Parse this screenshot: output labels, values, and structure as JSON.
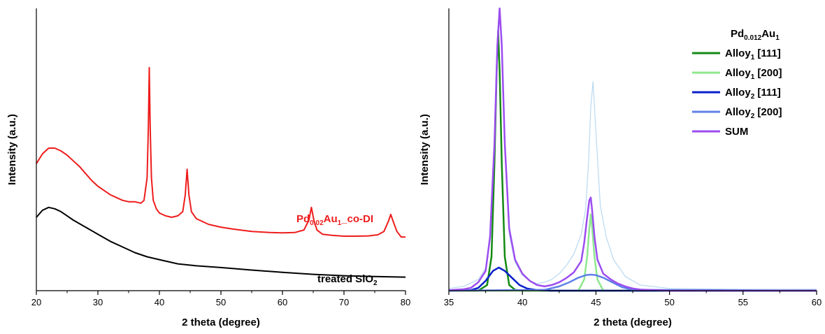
{
  "colors": {
    "red": "#ee1c1c",
    "black": "#000000",
    "alloy1_111": "#138a13",
    "alloy1_200": "#8ee88e",
    "alloy2_111": "#0a1fc8",
    "alloy2_200": "#5f80e8",
    "sum": "#9b4df0",
    "raw": "#b8d8f0"
  },
  "chart_data": [
    {
      "type": "line",
      "xlabel": "2 theta (degree)",
      "ylabel": "Intensity (a.u.)",
      "xlim": [
        20,
        80
      ],
      "xticks": [
        20,
        30,
        40,
        50,
        60,
        70,
        80
      ],
      "ylim": [
        0,
        100
      ],
      "y_ticks_shown": false,
      "annotations": [
        {
          "series": "red",
          "parts": [
            {
              "t": "Pd",
              "sub": false
            },
            {
              "t": "0.02",
              "sub": true
            },
            {
              "t": "Au",
              "sub": false
            },
            {
              "t": "1",
              "sub": true
            },
            {
              "t": "_co-DI",
              "sub": false
            }
          ]
        },
        {
          "series": "black",
          "parts": [
            {
              "t": "treated SiO",
              "sub": false
            },
            {
              "t": "2",
              "sub": true
            }
          ]
        }
      ],
      "series": [
        {
          "color_key": "red",
          "x": [
            20,
            21,
            22,
            23,
            24,
            25,
            26,
            27,
            28,
            29,
            30,
            31,
            32,
            33,
            34,
            35,
            36,
            37,
            37.5,
            38,
            38.2,
            38.35,
            38.5,
            38.7,
            39,
            39.5,
            40,
            41,
            42,
            43,
            43.8,
            44.2,
            44.5,
            44.8,
            45.2,
            46,
            47,
            48,
            50,
            52,
            55,
            58,
            60,
            62,
            63.5,
            64.3,
            64.7,
            65.1,
            65.6,
            66.5,
            68,
            70,
            72,
            74,
            75.5,
            76.5,
            77.2,
            77.6,
            78.0,
            78.6,
            79.3,
            80
          ],
          "y": [
            45,
            48.5,
            50.5,
            50.5,
            49.5,
            48,
            46,
            44,
            41.5,
            39,
            37,
            35.5,
            34,
            33,
            32,
            31.5,
            31.5,
            31,
            32,
            40,
            58,
            79,
            58,
            40,
            32,
            29,
            27.5,
            26.5,
            26,
            26.5,
            28,
            34,
            43,
            34,
            28,
            25.5,
            24.5,
            23.5,
            22.5,
            21.8,
            21,
            20.6,
            20.5,
            20.6,
            21.5,
            25,
            29.5,
            25,
            21.5,
            20,
            19.6,
            19.3,
            19.3,
            19.4,
            19.8,
            21,
            24.5,
            27,
            24.5,
            21,
            19,
            19
          ]
        },
        {
          "color_key": "black",
          "x": [
            20,
            21,
            22,
            23,
            24,
            25,
            26,
            28,
            30,
            32,
            34,
            36,
            38,
            40,
            43,
            46,
            50,
            55,
            60,
            65,
            70,
            75,
            80
          ],
          "y": [
            26,
            28.5,
            29.5,
            29,
            28,
            26.5,
            25,
            22.5,
            20,
            17.5,
            15.5,
            13.5,
            12,
            11,
            9.5,
            8.8,
            8.2,
            7.3,
            6.5,
            5.8,
            5.3,
            5,
            4.8
          ]
        }
      ]
    },
    {
      "type": "line",
      "xlabel": "2 theta (degree)",
      "ylabel": "Intensity (a.u.)",
      "xlim": [
        35,
        60
      ],
      "xticks": [
        35,
        40,
        45,
        50,
        55,
        60
      ],
      "ylim": [
        0,
        100
      ],
      "y_ticks_shown": false,
      "legend": {
        "position": "top-right",
        "title_parts": [
          {
            "t": "Pd",
            "sub": false
          },
          {
            "t": "0.012",
            "sub": true
          },
          {
            "t": "Au",
            "sub": false
          },
          {
            "t": "1",
            "sub": true
          }
        ],
        "entries": [
          {
            "color_key": "alloy1_111",
            "parts": [
              {
                "t": "Alloy",
                "sub": false
              },
              {
                "t": "1",
                "sub": true
              },
              {
                "t": " [111]",
                "sub": false
              }
            ]
          },
          {
            "color_key": "alloy1_200",
            "parts": [
              {
                "t": "Alloy",
                "sub": false
              },
              {
                "t": "1",
                "sub": true
              },
              {
                "t": " [200]",
                "sub": false
              }
            ]
          },
          {
            "color_key": "alloy2_111",
            "parts": [
              {
                "t": "Alloy",
                "sub": false
              },
              {
                "t": "2",
                "sub": true
              },
              {
                "t": " [111]",
                "sub": false
              }
            ]
          },
          {
            "color_key": "alloy2_200",
            "parts": [
              {
                "t": "Alloy",
                "sub": false
              },
              {
                "t": "2",
                "sub": true
              },
              {
                "t": " [200]",
                "sub": false
              }
            ]
          },
          {
            "color_key": "sum",
            "parts": [
              {
                "t": "SUM",
                "sub": false
              }
            ]
          }
        ]
      },
      "series": [
        {
          "color_key": "raw",
          "x": [
            35,
            36,
            37,
            37.5,
            37.8,
            38.1,
            38.3,
            38.45,
            38.6,
            38.8,
            39.1,
            39.5,
            40,
            40.5,
            41,
            41.5,
            42,
            42.5,
            43,
            43.5,
            44,
            44.3,
            44.5,
            44.65,
            44.8,
            45,
            45.3,
            45.7,
            46.2,
            47,
            48,
            50,
            55,
            60
          ],
          "y": [
            0.8,
            1.5,
            4,
            8,
            18,
            50,
            86,
            98,
            86,
            50,
            20,
            10,
            5.5,
            3.5,
            2.5,
            3,
            4,
            6,
            9,
            13,
            20,
            29,
            46,
            65,
            74,
            56,
            30,
            19,
            11,
            5,
            2,
            0.8,
            0.5,
            0.5
          ]
        },
        {
          "color_key": "alloy1_111",
          "x": [
            35,
            37,
            37.6,
            37.9,
            38.1,
            38.25,
            38.35,
            38.45,
            38.6,
            38.8,
            39.1,
            39.5,
            40,
            60
          ],
          "y": [
            0,
            0,
            2,
            12,
            45,
            78,
            92,
            78,
            45,
            12,
            2,
            0.3,
            0,
            0
          ]
        },
        {
          "color_key": "alloy1_200",
          "x": [
            35,
            43.8,
            44.2,
            44.4,
            44.55,
            44.65,
            44.75,
            44.9,
            45.1,
            45.5,
            60
          ],
          "y": [
            0,
            0,
            4,
            12,
            22,
            27,
            22,
            12,
            4,
            0,
            0
          ]
        },
        {
          "color_key": "alloy2_111",
          "x": [
            35,
            36.5,
            37,
            37.5,
            38,
            38.4,
            38.8,
            39.3,
            39.8,
            40.3,
            41,
            42,
            43,
            60
          ],
          "y": [
            0,
            0.2,
            1,
            3.5,
            7,
            8.2,
            7,
            4.5,
            2,
            0.8,
            0.2,
            0,
            0,
            0
          ]
        },
        {
          "color_key": "alloy2_200",
          "x": [
            35,
            41.5,
            42.5,
            43.2,
            43.8,
            44.3,
            44.65,
            45,
            45.5,
            46.1,
            46.8,
            47.5,
            60
          ],
          "y": [
            0,
            0.3,
            1.5,
            3,
            4.6,
            5.5,
            5.7,
            5.5,
            4.6,
            3,
            1.2,
            0.3,
            0
          ]
        },
        {
          "color_key": "sum",
          "x": [
            35,
            36,
            36.5,
            37,
            37.5,
            37.8,
            38.1,
            38.3,
            38.45,
            38.6,
            38.8,
            39.1,
            39.5,
            40,
            40.5,
            41,
            41.5,
            42,
            42.5,
            43,
            43.5,
            44,
            44.2,
            44.4,
            44.55,
            44.65,
            44.75,
            44.9,
            45.1,
            45.5,
            46,
            46.5,
            47,
            47.5,
            48,
            49,
            50,
            55,
            60
          ],
          "y": [
            0.2,
            0.5,
            1,
            3,
            7,
            19,
            52,
            87,
            100,
            87,
            52,
            22,
            11,
            6,
            3.5,
            2,
            1.5,
            2,
            3,
            4.5,
            6.5,
            10.5,
            17,
            26,
            32,
            33,
            28,
            19,
            11,
            6,
            4,
            2.5,
            1.5,
            0.8,
            0.4,
            0.2,
            0,
            0,
            0
          ]
        }
      ]
    }
  ]
}
